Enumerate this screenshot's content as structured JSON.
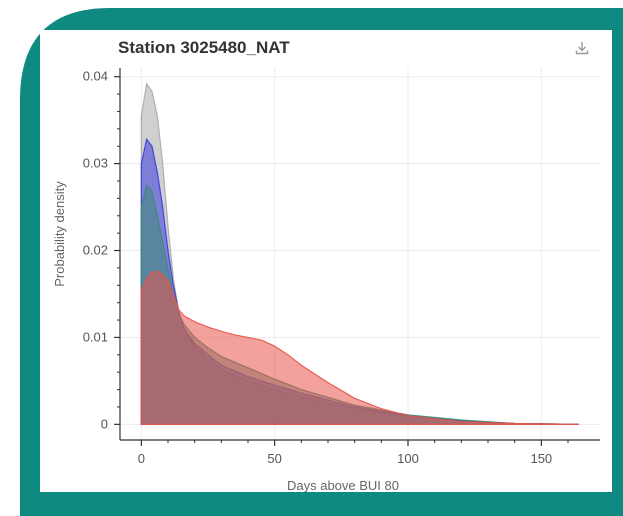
{
  "chart_data": {
    "type": "area",
    "title": "Station 3025480_NAT",
    "xlabel": "Days above BUI 80",
    "ylabel": "Probability density",
    "xlim": [
      -8,
      172
    ],
    "ylim": [
      -0.0018,
      0.041
    ],
    "xticks": [
      0,
      50,
      100,
      150
    ],
    "yticks": [
      0,
      0.01,
      0.02,
      0.03,
      0.04
    ],
    "xtick_labels": [
      "0",
      "50",
      "100",
      "150"
    ],
    "ytick_labels": [
      "0",
      "0.01",
      "0.02",
      "0.03",
      "0.04"
    ],
    "grid": true,
    "series": [
      {
        "color": "#a9a9a9",
        "x": [
          0,
          2,
          4,
          6,
          8,
          10,
          12,
          14,
          16,
          20,
          25,
          30,
          40,
          50,
          60,
          80,
          100,
          120,
          140,
          164
        ],
        "y": [
          0.0355,
          0.0392,
          0.0383,
          0.0355,
          0.03,
          0.0228,
          0.0168,
          0.013,
          0.011,
          0.009,
          0.0075,
          0.0063,
          0.005,
          0.004,
          0.0032,
          0.0018,
          0.0009,
          0.0004,
          0.0001,
          0.0
        ]
      },
      {
        "color": "#3b3bdc",
        "x": [
          0,
          2,
          4,
          6,
          8,
          10,
          12,
          14,
          16,
          20,
          25,
          30,
          40,
          50,
          60,
          80,
          100,
          120,
          140,
          164
        ],
        "y": [
          0.03,
          0.0328,
          0.032,
          0.029,
          0.025,
          0.02,
          0.016,
          0.013,
          0.011,
          0.0093,
          0.008,
          0.0068,
          0.0055,
          0.0045,
          0.0036,
          0.002,
          0.001,
          0.0004,
          0.0001,
          0.0
        ]
      },
      {
        "color": "#3d8a74",
        "x": [
          0,
          2,
          4,
          6,
          8,
          10,
          12,
          14,
          16,
          20,
          25,
          30,
          40,
          50,
          60,
          80,
          100,
          120,
          140,
          164
        ],
        "y": [
          0.025,
          0.0275,
          0.0268,
          0.024,
          0.021,
          0.0178,
          0.015,
          0.0128,
          0.0115,
          0.01,
          0.0088,
          0.0078,
          0.0065,
          0.0052,
          0.004,
          0.0022,
          0.0011,
          0.0005,
          0.0001,
          0.0
        ]
      },
      {
        "color": "#e8534a",
        "x": [
          0,
          2,
          4,
          6,
          8,
          10,
          12,
          14,
          16,
          20,
          25,
          30,
          35,
          40,
          45,
          50,
          55,
          60,
          70,
          80,
          90,
          100,
          120,
          140,
          164
        ],
        "y": [
          0.0155,
          0.0168,
          0.0175,
          0.0176,
          0.0172,
          0.0165,
          0.015,
          0.0132,
          0.0125,
          0.0118,
          0.0112,
          0.0107,
          0.0103,
          0.01,
          0.0097,
          0.009,
          0.008,
          0.0068,
          0.0048,
          0.003,
          0.0018,
          0.001,
          0.0003,
          0.0001,
          0.0
        ]
      }
    ]
  },
  "toolbar": {
    "download_icon": "download-icon"
  }
}
